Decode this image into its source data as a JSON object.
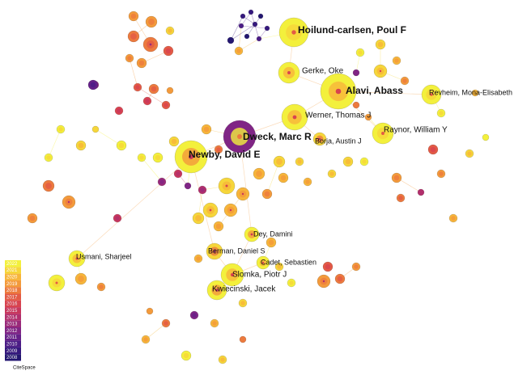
{
  "network": {
    "nodes": [
      {
        "label": "Hoilund-carlsen, Poul F"
      },
      {
        "label": "Gerke, Oke"
      },
      {
        "label": "Alavi, Abass"
      },
      {
        "label": "Revheim, Mona-Elisabeth"
      },
      {
        "label": "Werner, Thomas J"
      },
      {
        "label": "Dweck, Marc R"
      },
      {
        "label": "Raynor, William Y"
      },
      {
        "label": "Borja, Austin J"
      },
      {
        "label": "Newby, David E"
      },
      {
        "label": "Dey, Damini"
      },
      {
        "label": "Usmani, Sharjeel"
      },
      {
        "label": "Berman, Daniel S"
      },
      {
        "label": "Cadet, Sebastien"
      },
      {
        "label": "Slomka, Piotr J"
      },
      {
        "label": "Kwiecinski, Jacek"
      }
    ],
    "legend": [
      {
        "year": "2022",
        "color": "#f3f03c"
      },
      {
        "year": "2021",
        "color": "#f6d63a"
      },
      {
        "year": "2020",
        "color": "#f7b53a"
      },
      {
        "year": "2019",
        "color": "#f39a3b"
      },
      {
        "year": "2018",
        "color": "#ec7a3e"
      },
      {
        "year": "2017",
        "color": "#e35a45"
      },
      {
        "year": "2016",
        "color": "#d8434f"
      },
      {
        "year": "2015",
        "color": "#c8375d"
      },
      {
        "year": "2014",
        "color": "#b22f6c"
      },
      {
        "year": "2013",
        "color": "#9a2a7a"
      },
      {
        "year": "2012",
        "color": "#802585"
      },
      {
        "year": "2011",
        "color": "#652088"
      },
      {
        "year": "2010",
        "color": "#4b1c86"
      },
      {
        "year": "2009",
        "color": "#35187d"
      },
      {
        "year": "2008",
        "color": "#231670"
      }
    ],
    "logo": "CiteSpace"
  }
}
